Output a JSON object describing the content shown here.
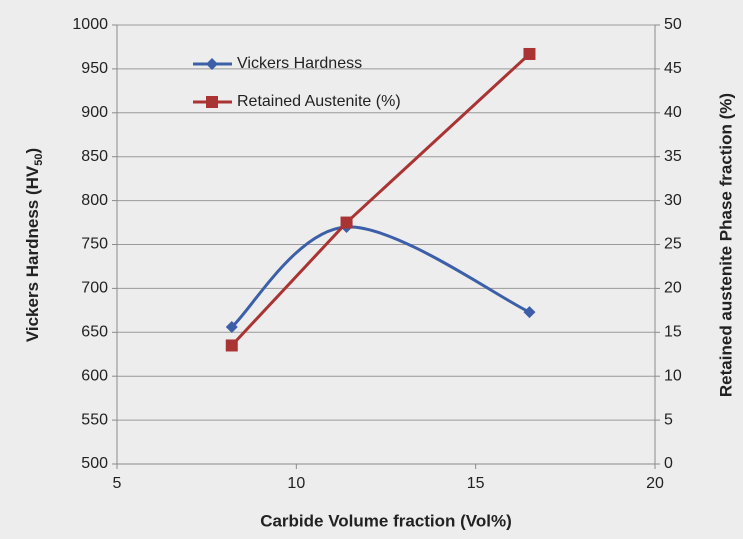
{
  "chart_data": {
    "type": "line",
    "xlabel": "Carbide Volume fraction (Vol%)",
    "ylabel": [
      "Vickers Hardness (HV",
      "50",
      ")"
    ],
    "y2label": "Retained austenite Phase fraction (%)",
    "xlim": [
      5,
      20
    ],
    "xticks": [
      5,
      10,
      15,
      20
    ],
    "ylim": [
      500,
      1000
    ],
    "yticks": [
      500,
      550,
      600,
      650,
      700,
      750,
      800,
      850,
      900,
      950,
      1000
    ],
    "y2lim": [
      0,
      50
    ],
    "y2ticks": [
      0,
      5,
      10,
      15,
      20,
      25,
      30,
      35,
      40,
      45,
      50
    ],
    "grid": true,
    "legend": "upper left",
    "series": [
      {
        "name": "Vickers Hardness",
        "color": "#3c5fa8",
        "marker": "diamond",
        "smooth": true,
        "x": [
          8.2,
          11.4,
          16.5
        ],
        "values": [
          656,
          770,
          673
        ]
      },
      {
        "name": "Retained Austenite (%)",
        "color": "#aa3333",
        "marker": "square",
        "axis": "y2",
        "smooth": false,
        "x": [
          8.2,
          11.4,
          16.5
        ],
        "values": [
          13.5,
          27.5,
          46.7
        ]
      }
    ]
  }
}
